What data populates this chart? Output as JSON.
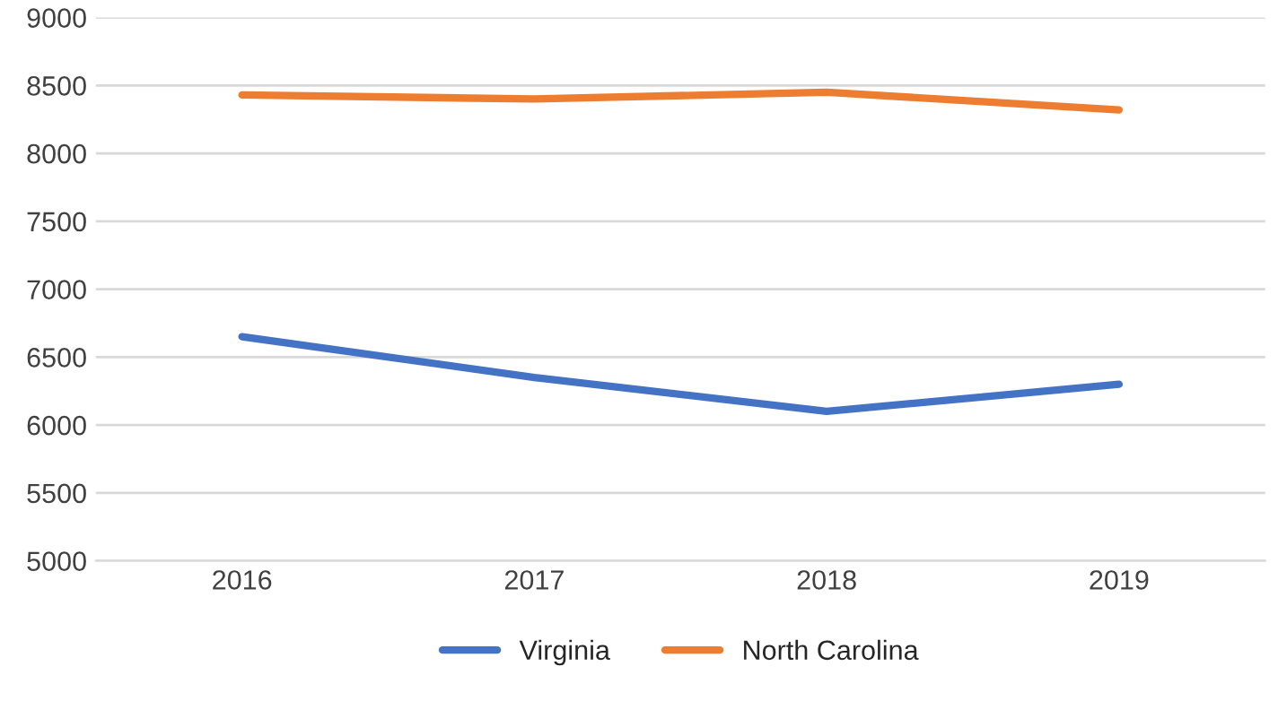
{
  "chart_data": {
    "type": "line",
    "categories": [
      "2016",
      "2017",
      "2018",
      "2019"
    ],
    "series": [
      {
        "name": "Virginia",
        "color": "#4472c4",
        "values": [
          6650,
          6350,
          6100,
          6300
        ]
      },
      {
        "name": "North Carolina",
        "color": "#ed7d31",
        "values": [
          8430,
          8400,
          8450,
          8320
        ]
      }
    ],
    "ylim": [
      5000,
      9000
    ],
    "yticks": [
      5000,
      5500,
      6000,
      6500,
      7000,
      7500,
      8000,
      8500,
      9000
    ],
    "grid": "y",
    "legend": "bottom",
    "marker": "none",
    "line_style": "solid"
  }
}
